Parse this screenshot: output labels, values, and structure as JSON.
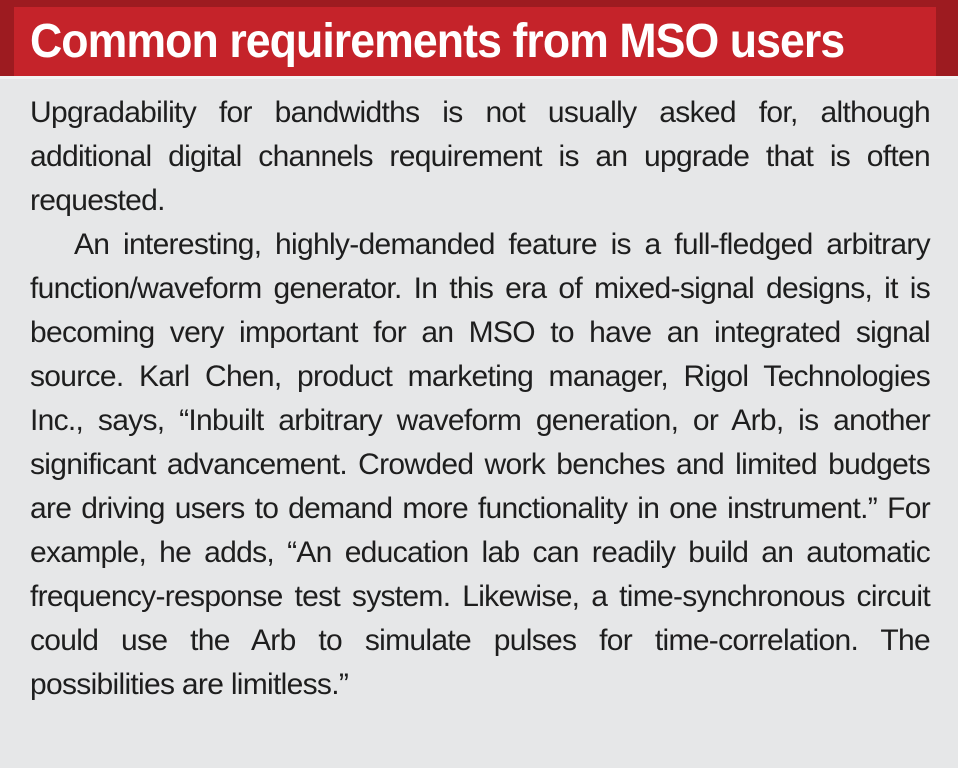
{
  "header": {
    "title": "Common requirements from MSO users"
  },
  "body": {
    "paragraphs": [
      "Upgradability for bandwidths is not usually asked for, although additional digital channels requirement is an upgrade that is often requested.",
      "An interesting, highly-demanded feature is a full-fledged arbitrary function/waveform generator. In this era of mixed-signal designs, it is becoming very important for an MSO to have an integrated signal source. Karl Chen, product marketing manager, Rigol Technologies Inc., says, “Inbuilt arbitrary waveform generation, or Arb, is another significant advancement. Crowded work benches and limited budgets are driving users to demand more functionality in one instrument.” For example, he adds, “An education lab can readily build an automatic frequency-response test system. Likewise, a time-synchronous circuit could use the Arb to simulate pulses for time-correlation. The possibilities are limitless.”"
    ]
  },
  "colors": {
    "header_red": "#c5232a",
    "border_dark_red": "#9d1b20",
    "body_bg": "#e6e7e8",
    "text": "#1e1e1e",
    "header_text": "#ffffff"
  }
}
